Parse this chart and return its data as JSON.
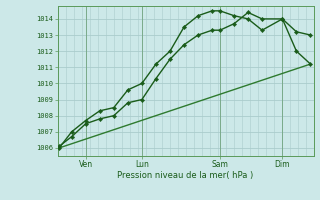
{
  "background_color": "#cce8e8",
  "grid_color": "#aacccc",
  "line_color_dark": "#1a5c1a",
  "line_color_mid": "#2e7a2e",
  "ylabel_vals": [
    1006,
    1007,
    1008,
    1009,
    1010,
    1011,
    1012,
    1013,
    1014
  ],
  "ylim": [
    1005.5,
    1014.8
  ],
  "xlim": [
    0.0,
    8.2
  ],
  "xlabel": "Pression niveau de la mer( hPa )",
  "xtick_positions": [
    0.9,
    2.7,
    5.2,
    7.2
  ],
  "xtick_labels": [
    "Ven",
    "Lun",
    "Sam",
    "Dim"
  ],
  "vline_positions": [
    0.9,
    2.7,
    5.2,
    7.2
  ],
  "series1_x": [
    0.05,
    0.45,
    0.9,
    1.35,
    1.8,
    2.25,
    2.7,
    3.15,
    3.6,
    4.05,
    4.5,
    4.95,
    5.2,
    5.65,
    6.1,
    6.55,
    7.2,
    7.65,
    8.1
  ],
  "series1_y": [
    1006.1,
    1006.7,
    1007.5,
    1007.8,
    1008.0,
    1008.8,
    1009.0,
    1010.3,
    1011.5,
    1012.4,
    1013.0,
    1013.3,
    1013.3,
    1013.7,
    1014.4,
    1014.0,
    1014.0,
    1012.0,
    1011.2
  ],
  "series2_x": [
    0.05,
    0.45,
    0.9,
    1.35,
    1.8,
    2.25,
    2.7,
    3.15,
    3.6,
    4.05,
    4.5,
    4.95,
    5.2,
    5.65,
    6.1,
    6.55,
    7.2,
    7.65,
    8.1
  ],
  "series2_y": [
    1006.0,
    1007.0,
    1007.7,
    1008.3,
    1008.5,
    1009.6,
    1010.0,
    1011.2,
    1012.0,
    1013.5,
    1014.2,
    1014.5,
    1014.5,
    1014.2,
    1014.0,
    1013.3,
    1014.0,
    1013.2,
    1013.0
  ],
  "series3_x": [
    0.05,
    8.1
  ],
  "series3_y": [
    1006.0,
    1011.2
  ],
  "marker": "D",
  "marker_size": 2.2,
  "line_width": 1.0
}
